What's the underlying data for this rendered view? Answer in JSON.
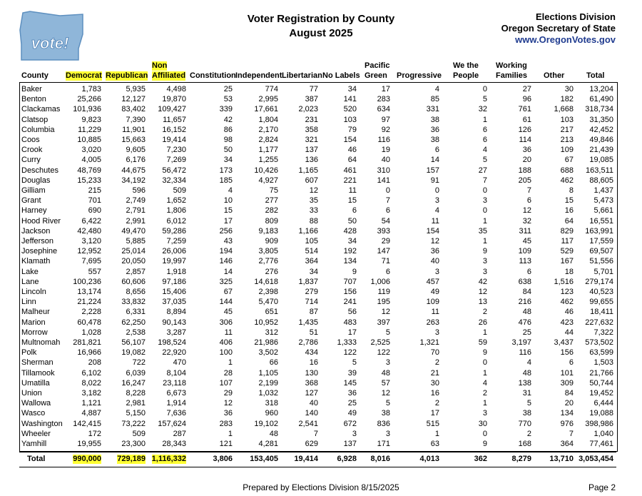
{
  "logo": "vote!",
  "title": [
    "Voter Registration by County",
    "August 2025"
  ],
  "agency": [
    "Elections Division",
    "Oregon Secretary of State",
    "www.OregonVotes.gov"
  ],
  "table": {
    "columns": [
      [
        "County"
      ],
      [
        "Democrat"
      ],
      [
        "Republican"
      ],
      [
        "Non",
        "Affiliated"
      ],
      [
        "Constitution"
      ],
      [
        "Independent"
      ],
      [
        "Libertarian"
      ],
      [
        "No Labels"
      ],
      [
        "Pacific",
        "Green"
      ],
      [
        "Progressive"
      ],
      [
        "We the",
        "People"
      ],
      [
        "Working",
        "Families"
      ],
      [
        "Other"
      ],
      [
        "Total"
      ]
    ],
    "rows": [
      [
        "Baker",
        "1,783",
        "5,935",
        "4,498",
        "25",
        "774",
        "77",
        "34",
        "17",
        "4",
        "0",
        "27",
        "30",
        "13,204"
      ],
      [
        "Benton",
        "25,266",
        "12,127",
        "19,870",
        "53",
        "2,995",
        "387",
        "141",
        "283",
        "85",
        "5",
        "96",
        "182",
        "61,490"
      ],
      [
        "Clackamas",
        "101,936",
        "83,402",
        "109,427",
        "339",
        "17,661",
        "2,023",
        "520",
        "634",
        "331",
        "32",
        "761",
        "1,668",
        "318,734"
      ],
      [
        "Clatsop",
        "9,823",
        "7,390",
        "11,657",
        "42",
        "1,804",
        "231",
        "103",
        "97",
        "38",
        "1",
        "61",
        "103",
        "31,350"
      ],
      [
        "Columbia",
        "11,229",
        "11,901",
        "16,152",
        "86",
        "2,170",
        "358",
        "79",
        "92",
        "36",
        "6",
        "126",
        "217",
        "42,452"
      ],
      [
        "Coos",
        "10,885",
        "15,663",
        "19,414",
        "98",
        "2,824",
        "321",
        "154",
        "116",
        "38",
        "6",
        "114",
        "213",
        "49,846"
      ],
      [
        "Crook",
        "3,020",
        "9,605",
        "7,230",
        "50",
        "1,177",
        "137",
        "46",
        "19",
        "6",
        "4",
        "36",
        "109",
        "21,439"
      ],
      [
        "Curry",
        "4,005",
        "6,176",
        "7,269",
        "34",
        "1,255",
        "136",
        "64",
        "40",
        "14",
        "5",
        "20",
        "67",
        "19,085"
      ],
      [
        "Deschutes",
        "48,769",
        "44,675",
        "56,472",
        "173",
        "10,426",
        "1,165",
        "461",
        "310",
        "157",
        "27",
        "188",
        "688",
        "163,511"
      ],
      [
        "Douglas",
        "15,233",
        "34,192",
        "32,334",
        "185",
        "4,927",
        "607",
        "221",
        "141",
        "91",
        "7",
        "205",
        "462",
        "88,605"
      ],
      [
        "Gilliam",
        "215",
        "596",
        "509",
        "4",
        "75",
        "12",
        "11",
        "0",
        "0",
        "0",
        "7",
        "8",
        "1,437"
      ],
      [
        "Grant",
        "701",
        "2,749",
        "1,652",
        "10",
        "277",
        "35",
        "15",
        "7",
        "3",
        "3",
        "6",
        "15",
        "5,473"
      ],
      [
        "Harney",
        "690",
        "2,791",
        "1,806",
        "15",
        "282",
        "33",
        "6",
        "6",
        "4",
        "0",
        "12",
        "16",
        "5,661"
      ],
      [
        "Hood River",
        "6,422",
        "2,991",
        "6,012",
        "17",
        "809",
        "88",
        "50",
        "54",
        "11",
        "1",
        "32",
        "64",
        "16,551"
      ],
      [
        "Jackson",
        "42,480",
        "49,470",
        "59,286",
        "256",
        "9,183",
        "1,166",
        "428",
        "393",
        "154",
        "35",
        "311",
        "829",
        "163,991"
      ],
      [
        "Jefferson",
        "3,120",
        "5,885",
        "7,259",
        "43",
        "909",
        "105",
        "34",
        "29",
        "12",
        "1",
        "45",
        "117",
        "17,559"
      ],
      [
        "Josephine",
        "12,952",
        "25,014",
        "26,006",
        "194",
        "3,805",
        "514",
        "192",
        "147",
        "36",
        "9",
        "109",
        "529",
        "69,507"
      ],
      [
        "Klamath",
        "7,695",
        "20,050",
        "19,997",
        "146",
        "2,776",
        "364",
        "134",
        "71",
        "40",
        "3",
        "113",
        "167",
        "51,556"
      ],
      [
        "Lake",
        "557",
        "2,857",
        "1,918",
        "14",
        "276",
        "34",
        "9",
        "6",
        "3",
        "3",
        "6",
        "18",
        "5,701"
      ],
      [
        "Lane",
        "100,236",
        "60,606",
        "97,186",
        "325",
        "14,618",
        "1,837",
        "707",
        "1,006",
        "457",
        "42",
        "638",
        "1,516",
        "279,174"
      ],
      [
        "Lincoln",
        "13,174",
        "8,656",
        "15,406",
        "67",
        "2,398",
        "279",
        "156",
        "119",
        "49",
        "12",
        "84",
        "123",
        "40,523"
      ],
      [
        "Linn",
        "21,224",
        "33,832",
        "37,035",
        "144",
        "5,470",
        "714",
        "241",
        "195",
        "109",
        "13",
        "216",
        "462",
        "99,655"
      ],
      [
        "Malheur",
        "2,228",
        "6,331",
        "8,894",
        "45",
        "651",
        "87",
        "56",
        "12",
        "11",
        "2",
        "48",
        "46",
        "18,411"
      ],
      [
        "Marion",
        "60,478",
        "62,250",
        "90,143",
        "306",
        "10,952",
        "1,435",
        "483",
        "397",
        "263",
        "26",
        "476",
        "423",
        "227,632"
      ],
      [
        "Morrow",
        "1,028",
        "2,538",
        "3,287",
        "11",
        "312",
        "51",
        "17",
        "5",
        "3",
        "1",
        "25",
        "44",
        "7,322"
      ],
      [
        "Multnomah",
        "281,821",
        "56,107",
        "198,524",
        "406",
        "21,986",
        "2,786",
        "1,333",
        "2,525",
        "1,321",
        "59",
        "3,197",
        "3,437",
        "573,502"
      ],
      [
        "Polk",
        "16,966",
        "19,082",
        "22,920",
        "100",
        "3,502",
        "434",
        "122",
        "122",
        "70",
        "9",
        "116",
        "156",
        "63,599"
      ],
      [
        "Sherman",
        "208",
        "722",
        "470",
        "1",
        "66",
        "16",
        "5",
        "3",
        "2",
        "0",
        "4",
        "6",
        "1,503"
      ],
      [
        "Tillamook",
        "6,102",
        "6,039",
        "8,104",
        "28",
        "1,105",
        "130",
        "39",
        "48",
        "21",
        "1",
        "48",
        "101",
        "21,766"
      ],
      [
        "Umatilla",
        "8,022",
        "16,247",
        "23,118",
        "107",
        "2,199",
        "368",
        "145",
        "57",
        "30",
        "4",
        "138",
        "309",
        "50,744"
      ],
      [
        "Union",
        "3,182",
        "8,228",
        "6,673",
        "29",
        "1,032",
        "127",
        "36",
        "12",
        "16",
        "2",
        "31",
        "84",
        "19,452"
      ],
      [
        "Wallowa",
        "1,121",
        "2,981",
        "1,914",
        "12",
        "318",
        "40",
        "25",
        "5",
        "2",
        "1",
        "5",
        "20",
        "6,444"
      ],
      [
        "Wasco",
        "4,887",
        "5,150",
        "7,636",
        "36",
        "960",
        "140",
        "49",
        "38",
        "17",
        "3",
        "38",
        "134",
        "19,088"
      ],
      [
        "Washington",
        "142,415",
        "73,222",
        "157,624",
        "283",
        "19,102",
        "2,541",
        "672",
        "836",
        "515",
        "30",
        "770",
        "976",
        "398,986"
      ],
      [
        "Wheeler",
        "172",
        "509",
        "287",
        "1",
        "48",
        "7",
        "3",
        "3",
        "1",
        "0",
        "2",
        "7",
        "1,040"
      ],
      [
        "Yamhill",
        "19,955",
        "23,300",
        "28,343",
        "121",
        "4,281",
        "629",
        "137",
        "171",
        "63",
        "9",
        "168",
        "364",
        "77,461"
      ]
    ],
    "total": [
      "Total",
      "990,000",
      "729,189",
      "1,116,332",
      "3,806",
      "153,405",
      "19,414",
      "6,928",
      "8,016",
      "4,013",
      "362",
      "8,279",
      "13,710",
      "3,053,454"
    ]
  },
  "footer": {
    "prepared": "Prepared by Elections Division 8/15/2025",
    "page": "Page 2"
  }
}
